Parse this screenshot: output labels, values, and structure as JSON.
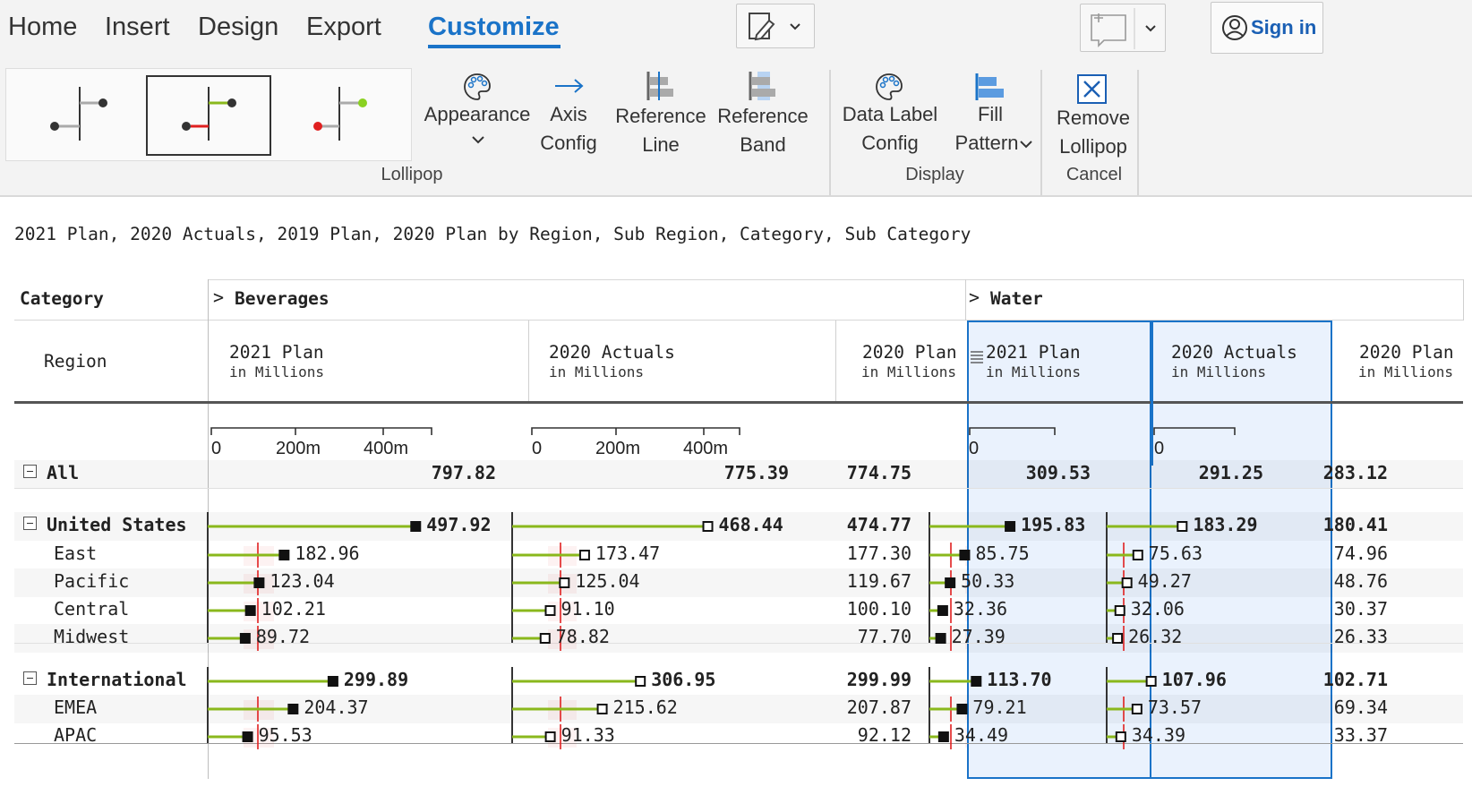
{
  "menu": {
    "items": [
      "Home",
      "Insert",
      "Design",
      "Export",
      "Customize"
    ],
    "active": "Customize",
    "sign_in": "Sign in"
  },
  "ribbon": {
    "lollipop_group_label": "Lollipop",
    "display_group_label": "Display",
    "cancel_group_label": "Cancel",
    "appearance": "Appearance",
    "axis_config": [
      "Axis",
      "Config"
    ],
    "reference_line": [
      "Reference",
      "Line"
    ],
    "reference_band": [
      "Reference",
      "Band"
    ],
    "data_label_config": [
      "Data Label",
      "Config"
    ],
    "fill_pattern": [
      "Fill",
      "Pattern"
    ],
    "remove_lollipop": [
      "Remove",
      "Lollipop"
    ]
  },
  "title": "2021 Plan, 2020 Actuals, 2019 Plan, 2020 Plan by Region, Sub Region, Category, Sub Category",
  "table": {
    "category_header": "Category",
    "region_header": "Region",
    "categories": [
      "Beverages",
      "Water"
    ],
    "measures": {
      "plan_2021": "2021 Plan",
      "actuals_2020": "2020 Actuals",
      "plan_2020": "2020 Plan",
      "unit": "in Millions"
    },
    "axis_ticks": [
      "0",
      "200m",
      "400m"
    ],
    "axis_zero": "0",
    "rows": [
      {
        "label": "All",
        "level": 0,
        "bold": true,
        "expand": true,
        "values": [
          "797.82",
          "775.39",
          "774.75",
          "309.53",
          "291.25",
          "283.12"
        ]
      },
      {
        "label": "United States",
        "level": 0,
        "bold": true,
        "expand": true,
        "values": [
          "497.92",
          "468.44",
          "474.77",
          "195.83",
          "183.29",
          "180.41"
        ]
      },
      {
        "label": "East",
        "level": 1,
        "bold": false,
        "values": [
          "182.96",
          "173.47",
          "177.30",
          "85.75",
          "75.63",
          "74.96"
        ]
      },
      {
        "label": "Pacific",
        "level": 1,
        "bold": false,
        "values": [
          "123.04",
          "125.04",
          "119.67",
          "50.33",
          "49.27",
          "48.76"
        ]
      },
      {
        "label": "Central",
        "level": 1,
        "bold": false,
        "values": [
          "102.21",
          "91.10",
          "100.10",
          "32.36",
          "32.06",
          "30.37"
        ]
      },
      {
        "label": "Midwest",
        "level": 1,
        "bold": false,
        "values": [
          "89.72",
          "78.82",
          "77.70",
          "27.39",
          "26.32",
          "26.33"
        ]
      },
      {
        "label": "International",
        "level": 0,
        "bold": true,
        "expand": true,
        "values": [
          "299.89",
          "306.95",
          "299.99",
          "113.70",
          "107.96",
          "102.71"
        ]
      },
      {
        "label": "EMEA",
        "level": 1,
        "bold": false,
        "values": [
          "204.37",
          "215.62",
          "207.87",
          "79.21",
          "73.57",
          "69.34"
        ]
      },
      {
        "label": "APAC",
        "level": 1,
        "bold": false,
        "values": [
          "95.53",
          "91.33",
          "92.12",
          "34.49",
          "34.39",
          "33.37"
        ]
      }
    ]
  },
  "colors": {
    "accent": "#1a73c8",
    "lollipop_stem": "#8ab81c",
    "reference_line": "#e02020",
    "selected_column_bg": "#eaf2fd"
  }
}
